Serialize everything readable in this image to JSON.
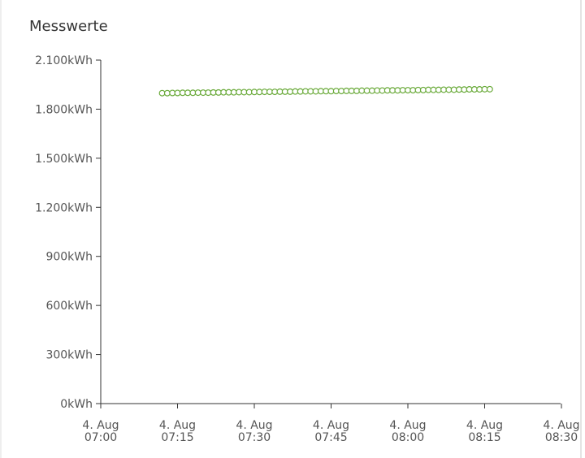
{
  "chart_data": {
    "type": "scatter",
    "title": "Messwerte",
    "series": [
      {
        "color": "#6aaa3a",
        "x": [
          "07:12",
          "07:13",
          "07:14",
          "07:15",
          "07:16",
          "07:17",
          "07:18",
          "07:19",
          "07:20",
          "07:21",
          "07:22",
          "07:23",
          "07:24",
          "07:25",
          "07:26",
          "07:27",
          "07:28",
          "07:29",
          "07:30",
          "07:31",
          "07:32",
          "07:33",
          "07:34",
          "07:35",
          "07:36",
          "07:37",
          "07:38",
          "07:39",
          "07:40",
          "07:41",
          "07:42",
          "07:43",
          "07:44",
          "07:45",
          "07:46",
          "07:47",
          "07:48",
          "07:49",
          "07:50",
          "07:51",
          "07:52",
          "07:53",
          "07:54",
          "07:55",
          "07:56",
          "07:57",
          "07:58",
          "07:59",
          "08:00",
          "08:01",
          "08:02",
          "08:03",
          "08:04",
          "08:05",
          "08:06",
          "08:07",
          "08:08",
          "08:09",
          "08:10",
          "08:11",
          "08:12",
          "08:13",
          "08:14",
          "08:15",
          "08:16"
        ],
        "values": [
          1898,
          1898,
          1899,
          1899,
          1900,
          1900,
          1900,
          1901,
          1901,
          1901,
          1902,
          1902,
          1903,
          1903,
          1903,
          1904,
          1904,
          1904,
          1905,
          1905,
          1906,
          1906,
          1906,
          1907,
          1907,
          1907,
          1908,
          1908,
          1909,
          1909,
          1909,
          1910,
          1910,
          1910,
          1911,
          1911,
          1912,
          1912,
          1912,
          1913,
          1913,
          1913,
          1914,
          1914,
          1915,
          1915,
          1915,
          1916,
          1916,
          1916,
          1917,
          1917,
          1918,
          1918,
          1918,
          1919,
          1919,
          1919,
          1920,
          1920,
          1921,
          1921,
          1921,
          1922,
          1922
        ]
      }
    ],
    "xlim": [
      "07:00",
      "08:30"
    ],
    "xticks": [
      {
        "date": "4. Aug",
        "time": "07:00"
      },
      {
        "date": "4. Aug",
        "time": "07:15"
      },
      {
        "date": "4. Aug",
        "time": "07:30"
      },
      {
        "date": "4. Aug",
        "time": "07:45"
      },
      {
        "date": "4. Aug",
        "time": "08:00"
      },
      {
        "date": "4. Aug",
        "time": "08:15"
      },
      {
        "date": "4. Aug",
        "time": "08:30"
      }
    ],
    "ylim": [
      0,
      2100
    ],
    "yticks": [
      {
        "value": 0,
        "label": "0kWh"
      },
      {
        "value": 300,
        "label": "300kWh"
      },
      {
        "value": 600,
        "label": "600kWh"
      },
      {
        "value": 900,
        "label": "900kWh"
      },
      {
        "value": 1200,
        "label": "1.200kWh"
      },
      {
        "value": 1500,
        "label": "1.500kWh"
      },
      {
        "value": 1800,
        "label": "1.800kWh"
      },
      {
        "value": 2100,
        "label": "2.100kWh"
      }
    ]
  }
}
